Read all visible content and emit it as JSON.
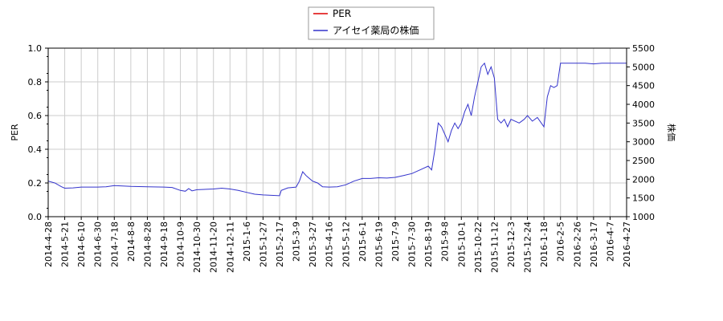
{
  "chart_data": {
    "type": "line",
    "legend": {
      "placement": "top-center",
      "entries": [
        {
          "name": "PER",
          "color": "#dd0000"
        },
        {
          "name": "アイセイ薬局の株価",
          "color": "#3333cc"
        }
      ]
    },
    "y_left": {
      "label": "PER",
      "range": [
        0.0,
        1.0
      ],
      "ticks": [
        "0.0",
        "0.2",
        "0.4",
        "0.6",
        "0.8",
        "1.0"
      ]
    },
    "y_right": {
      "label": "株価",
      "range": [
        1000,
        5500
      ],
      "ticks": [
        "1000",
        "1500",
        "2000",
        "2500",
        "3000",
        "3500",
        "4000",
        "4500",
        "5000",
        "5500"
      ]
    },
    "x_ticks": [
      "2014-4-28",
      "2014-5-21",
      "2014-6-10",
      "2014-6-30",
      "2014-7-18",
      "2014-8-8",
      "2014-8-28",
      "2014-9-18",
      "2014-10-9",
      "2014-10-30",
      "2014-11-20",
      "2014-12-11",
      "2015-1-6",
      "2015-1-27",
      "2015-2-17",
      "2015-3-9",
      "2015-3-27",
      "2015-4-16",
      "2015-5-12",
      "2015-6-1",
      "2015-6-19",
      "2015-7-9",
      "2015-7-30",
      "2015-8-19",
      "2015-9-8",
      "2015-10-1",
      "2015-10-22",
      "2015-11-12",
      "2015-12-3",
      "2015-12-24",
      "2016-1-18",
      "2016-2-5",
      "2016-2-26",
      "2016-3-17",
      "2016-4-7",
      "2016-4-27"
    ],
    "grid": true,
    "series": [
      {
        "name": "PER",
        "axis": "left",
        "color": "#dd0000",
        "points": []
      },
      {
        "name": "アイセイ薬局の株価",
        "axis": "right",
        "color": "#3333cc",
        "points": [
          [
            0.0,
            1950
          ],
          [
            0.4,
            1900
          ],
          [
            0.8,
            1800
          ],
          [
            1.0,
            1760
          ],
          [
            1.5,
            1770
          ],
          [
            2.0,
            1790
          ],
          [
            3.0,
            1790
          ],
          [
            3.5,
            1800
          ],
          [
            4.0,
            1830
          ],
          [
            4.5,
            1820
          ],
          [
            5.0,
            1810
          ],
          [
            6.0,
            1800
          ],
          [
            7.0,
            1790
          ],
          [
            7.5,
            1780
          ],
          [
            8.0,
            1700
          ],
          [
            8.3,
            1680
          ],
          [
            8.5,
            1750
          ],
          [
            8.7,
            1690
          ],
          [
            9.0,
            1720
          ],
          [
            10.0,
            1740
          ],
          [
            10.5,
            1760
          ],
          [
            11.0,
            1740
          ],
          [
            11.5,
            1700
          ],
          [
            12.0,
            1650
          ],
          [
            12.5,
            1600
          ],
          [
            13.0,
            1580
          ],
          [
            14.0,
            1560
          ],
          [
            14.1,
            1700
          ],
          [
            14.5,
            1770
          ],
          [
            15.0,
            1790
          ],
          [
            15.2,
            1950
          ],
          [
            15.4,
            2200
          ],
          [
            15.6,
            2100
          ],
          [
            16.0,
            1950
          ],
          [
            16.3,
            1900
          ],
          [
            16.6,
            1800
          ],
          [
            17.0,
            1790
          ],
          [
            17.5,
            1800
          ],
          [
            18.0,
            1850
          ],
          [
            18.5,
            1950
          ],
          [
            19.0,
            2020
          ],
          [
            19.5,
            2020
          ],
          [
            20.0,
            2040
          ],
          [
            20.5,
            2030
          ],
          [
            21.0,
            2050
          ],
          [
            21.5,
            2100
          ],
          [
            22.0,
            2150
          ],
          [
            22.5,
            2250
          ],
          [
            23.0,
            2350
          ],
          [
            23.2,
            2250
          ],
          [
            23.4,
            2800
          ],
          [
            23.6,
            3500
          ],
          [
            23.8,
            3400
          ],
          [
            24.0,
            3200
          ],
          [
            24.2,
            3000
          ],
          [
            24.4,
            3300
          ],
          [
            24.6,
            3500
          ],
          [
            24.8,
            3350
          ],
          [
            25.0,
            3500
          ],
          [
            25.2,
            3800
          ],
          [
            25.4,
            4000
          ],
          [
            25.6,
            3700
          ],
          [
            25.8,
            4200
          ],
          [
            26.0,
            4600
          ],
          [
            26.2,
            5000
          ],
          [
            26.4,
            5100
          ],
          [
            26.6,
            4800
          ],
          [
            26.8,
            5000
          ],
          [
            27.0,
            4700
          ],
          [
            27.2,
            3600
          ],
          [
            27.4,
            3500
          ],
          [
            27.6,
            3600
          ],
          [
            27.8,
            3400
          ],
          [
            28.0,
            3600
          ],
          [
            28.5,
            3500
          ],
          [
            28.8,
            3600
          ],
          [
            29.0,
            3700
          ],
          [
            29.3,
            3550
          ],
          [
            29.6,
            3650
          ],
          [
            30.0,
            3400
          ],
          [
            30.2,
            4200
          ],
          [
            30.4,
            4500
          ],
          [
            30.6,
            4450
          ],
          [
            30.8,
            4500
          ],
          [
            31.0,
            5100
          ],
          [
            31.5,
            5100
          ],
          [
            32.0,
            5100
          ],
          [
            32.5,
            5100
          ],
          [
            33.0,
            5080
          ],
          [
            33.5,
            5100
          ],
          [
            34.0,
            5100
          ],
          [
            34.5,
            5100
          ],
          [
            35.0,
            5100
          ]
        ]
      }
    ]
  }
}
